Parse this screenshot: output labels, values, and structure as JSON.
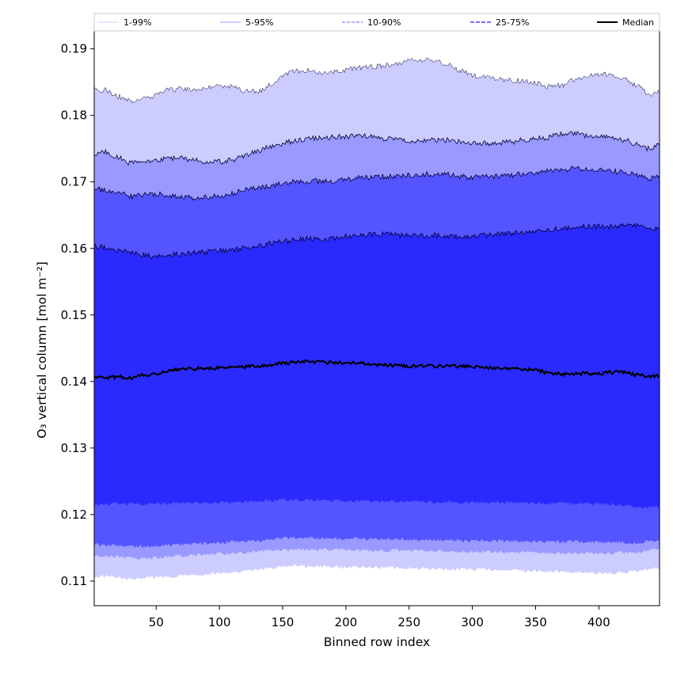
{
  "chart_data": {
    "type": "area",
    "xlabel": "Binned row index",
    "ylabel": "O₃ vertical column [mol m⁻²]",
    "xlim": [
      1,
      448
    ],
    "ylim": [
      0.1063,
      0.1927
    ],
    "xticks": [
      50,
      100,
      150,
      200,
      250,
      300,
      350,
      400
    ],
    "yticks": [
      0.11,
      0.12,
      0.13,
      0.14,
      0.15,
      0.16,
      0.17,
      0.18,
      0.19
    ],
    "legend_position": "top (above plot, horizontal)",
    "x": [
      1,
      10,
      20,
      30,
      40,
      50,
      60,
      70,
      80,
      90,
      100,
      110,
      120,
      130,
      140,
      150,
      160,
      170,
      180,
      190,
      200,
      210,
      220,
      230,
      240,
      250,
      260,
      270,
      280,
      290,
      300,
      310,
      320,
      330,
      340,
      350,
      360,
      370,
      380,
      390,
      400,
      410,
      420,
      430,
      440,
      448
    ],
    "bands": [
      {
        "name": "1-99%",
        "color": "#ccccff",
        "lower": [
          0.1105,
          0.1107,
          0.1105,
          0.1103,
          0.1104,
          0.1106,
          0.1107,
          0.1108,
          0.1109,
          0.111,
          0.1112,
          0.1113,
          0.1115,
          0.1117,
          0.1119,
          0.1122,
          0.1123,
          0.1122,
          0.1122,
          0.1122,
          0.1121,
          0.1121,
          0.1121,
          0.1121,
          0.112,
          0.112,
          0.1119,
          0.1119,
          0.1118,
          0.1118,
          0.1117,
          0.1117,
          0.1117,
          0.1117,
          0.1116,
          0.1115,
          0.1114,
          0.1114,
          0.1113,
          0.1113,
          0.1112,
          0.1112,
          0.1113,
          0.1115,
          0.1118,
          0.112
        ],
        "upper": [
          0.184,
          0.1838,
          0.1828,
          0.1822,
          0.1825,
          0.183,
          0.1838,
          0.184,
          0.1838,
          0.1843,
          0.1845,
          0.1843,
          0.1837,
          0.1835,
          0.1845,
          0.186,
          0.1867,
          0.1867,
          0.1862,
          0.1865,
          0.1868,
          0.1872,
          0.1873,
          0.1875,
          0.1878,
          0.1882,
          0.1884,
          0.1883,
          0.1876,
          0.1868,
          0.186,
          0.1857,
          0.1855,
          0.1853,
          0.1852,
          0.1848,
          0.1843,
          0.1845,
          0.1853,
          0.1858,
          0.1862,
          0.1862,
          0.1855,
          0.1845,
          0.1832,
          0.1835
        ]
      },
      {
        "name": "5-95%",
        "color": "#9999ff",
        "lower": [
          0.1138,
          0.1137,
          0.1136,
          0.1135,
          0.1134,
          0.1135,
          0.1137,
          0.1138,
          0.1139,
          0.114,
          0.1141,
          0.1142,
          0.1143,
          0.1144,
          0.1146,
          0.1147,
          0.1148,
          0.1148,
          0.1147,
          0.1147,
          0.1147,
          0.1147,
          0.1146,
          0.1146,
          0.1146,
          0.1146,
          0.1145,
          0.1145,
          0.1145,
          0.1144,
          0.1144,
          0.1144,
          0.1144,
          0.1143,
          0.1143,
          0.1142,
          0.1142,
          0.1142,
          0.1142,
          0.1142,
          0.1142,
          0.1142,
          0.1143,
          0.1143,
          0.1146,
          0.1148
        ],
        "upper": [
          0.174,
          0.1745,
          0.1737,
          0.1728,
          0.173,
          0.1732,
          0.1736,
          0.1736,
          0.1733,
          0.173,
          0.173,
          0.1733,
          0.174,
          0.1745,
          0.1753,
          0.1758,
          0.1762,
          0.1765,
          0.1767,
          0.1767,
          0.1768,
          0.177,
          0.1768,
          0.1765,
          0.1763,
          0.1762,
          0.1763,
          0.1763,
          0.1763,
          0.176,
          0.1759,
          0.1758,
          0.1758,
          0.176,
          0.1763,
          0.1765,
          0.1767,
          0.1772,
          0.1773,
          0.177,
          0.1768,
          0.1767,
          0.1763,
          0.1757,
          0.175,
          0.1755
        ]
      },
      {
        "name": "10-90%",
        "color": "#5555ff",
        "lower": [
          0.1155,
          0.1154,
          0.1153,
          0.1152,
          0.1152,
          0.1153,
          0.1154,
          0.1155,
          0.1156,
          0.1157,
          0.1158,
          0.1159,
          0.116,
          0.1161,
          0.1163,
          0.1164,
          0.1165,
          0.1165,
          0.1164,
          0.1164,
          0.1164,
          0.1164,
          0.1163,
          0.1163,
          0.1163,
          0.1163,
          0.1162,
          0.1162,
          0.1162,
          0.1161,
          0.1161,
          0.1161,
          0.1161,
          0.116,
          0.116,
          0.1159,
          0.1159,
          0.1159,
          0.1159,
          0.1159,
          0.1159,
          0.1159,
          0.1158,
          0.1157,
          0.116,
          0.1162
        ],
        "upper": [
          0.169,
          0.1688,
          0.1683,
          0.1678,
          0.168,
          0.1682,
          0.168,
          0.1678,
          0.1676,
          0.1678,
          0.1679,
          0.1683,
          0.1688,
          0.1691,
          0.1693,
          0.1697,
          0.17,
          0.1701,
          0.1701,
          0.1701,
          0.1703,
          0.1706,
          0.1707,
          0.1708,
          0.1708,
          0.171,
          0.1711,
          0.1712,
          0.1711,
          0.1708,
          0.1707,
          0.1708,
          0.1708,
          0.171,
          0.1712,
          0.1714,
          0.1716,
          0.1718,
          0.172,
          0.1719,
          0.1718,
          0.1716,
          0.1714,
          0.171,
          0.1705,
          0.171
        ]
      },
      {
        "name": "25-75%",
        "color": "#2a2aff",
        "lower": [
          0.1215,
          0.1215,
          0.1216,
          0.1216,
          0.1216,
          0.1216,
          0.1217,
          0.1217,
          0.1217,
          0.1218,
          0.1218,
          0.1218,
          0.1219,
          0.122,
          0.1221,
          0.1222,
          0.1222,
          0.1222,
          0.1221,
          0.1221,
          0.1221,
          0.1221,
          0.122,
          0.122,
          0.122,
          0.122,
          0.1219,
          0.1219,
          0.1219,
          0.1218,
          0.1218,
          0.1218,
          0.1219,
          0.1218,
          0.1218,
          0.1217,
          0.1217,
          0.1217,
          0.1216,
          0.1216,
          0.1216,
          0.1216,
          0.1214,
          0.1211,
          0.121,
          0.1212
        ],
        "upper": [
          0.1603,
          0.1602,
          0.1598,
          0.1593,
          0.159,
          0.1588,
          0.159,
          0.1592,
          0.1593,
          0.1595,
          0.1597,
          0.1598,
          0.16,
          0.1603,
          0.1607,
          0.161,
          0.1613,
          0.1615,
          0.1613,
          0.1615,
          0.1618,
          0.162,
          0.1621,
          0.1621,
          0.162,
          0.162,
          0.1619,
          0.162,
          0.1619,
          0.1618,
          0.1617,
          0.162,
          0.1622,
          0.1623,
          0.1625,
          0.1627,
          0.1627,
          0.163,
          0.1632,
          0.1633,
          0.1633,
          0.1633,
          0.1635,
          0.1634,
          0.163,
          0.163
        ]
      }
    ],
    "median": {
      "name": "Median",
      "color": "#000000",
      "values": [
        0.1405,
        0.1406,
        0.1407,
        0.1406,
        0.1409,
        0.1412,
        0.1416,
        0.1419,
        0.1419,
        0.142,
        0.142,
        0.1421,
        0.1422,
        0.1423,
        0.1425,
        0.1427,
        0.1429,
        0.143,
        0.1429,
        0.1428,
        0.1428,
        0.1428,
        0.1426,
        0.1425,
        0.1424,
        0.1423,
        0.1423,
        0.1423,
        0.1423,
        0.1423,
        0.1422,
        0.1421,
        0.1421,
        0.142,
        0.1419,
        0.1417,
        0.1413,
        0.1411,
        0.1411,
        0.1412,
        0.1412,
        0.1414,
        0.1414,
        0.141,
        0.1408,
        0.1409
      ]
    },
    "legend": [
      {
        "label": "1-99%",
        "style": "thin-solid"
      },
      {
        "label": "5-95%",
        "style": "thin-solid"
      },
      {
        "label": "10-90%",
        "style": "dashed"
      },
      {
        "label": "25-75%",
        "style": "dashed"
      },
      {
        "label": "Median",
        "style": "thick-solid"
      }
    ]
  }
}
